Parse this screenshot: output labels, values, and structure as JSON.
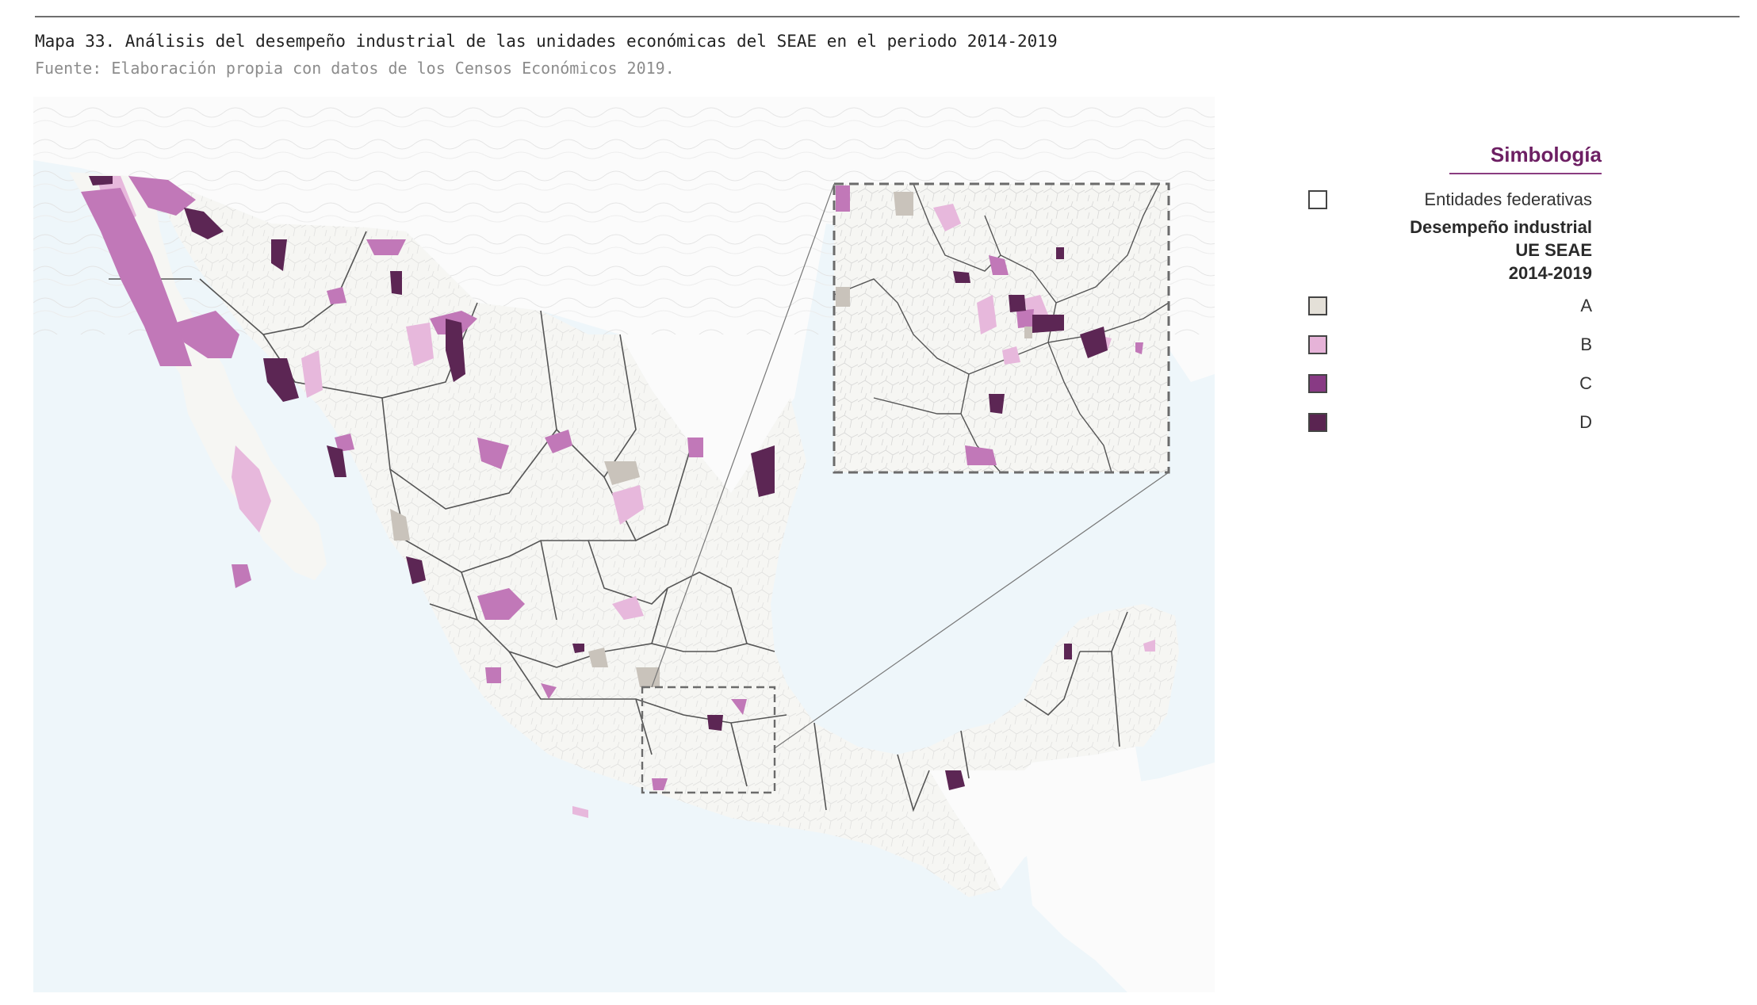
{
  "figure": {
    "caption": "Mapa 33. Análisis del desempeño industrial de las unidades económicas del SEAE en el periodo 2014-2019",
    "source": "Fuente: Elaboración propia con datos de los Censos Económicos 2019."
  },
  "legend": {
    "title": "Simbología",
    "boundary_label": "Entidades federativas",
    "heading_lines": [
      "Desempeño industrial",
      "UE SEAE",
      "2014-2019"
    ],
    "classes": [
      {
        "label": "A",
        "color": "#e4e0d8"
      },
      {
        "label": "B",
        "color": "#e6b3d8"
      },
      {
        "label": "C",
        "color": "#883a84"
      },
      {
        "label": "D",
        "color": "#5a2451"
      }
    ]
  },
  "colors": {
    "sea": "#eef6fa",
    "land": "#f6f6f3",
    "land_outside": "#fbfbfb",
    "state_border": "#555555",
    "class_A": "#c9c3bb",
    "class_B": "#e7b8dc",
    "class_C": "#c178b8",
    "class_D": "#5c2654",
    "inset_border": "#6b6b6b"
  }
}
